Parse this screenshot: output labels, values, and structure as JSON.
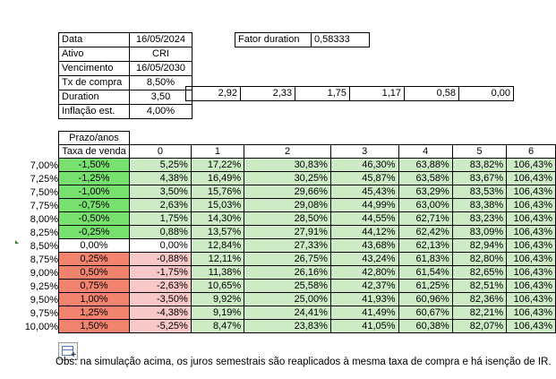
{
  "info": {
    "rows": [
      {
        "label": "Data",
        "value": "16/05/2024"
      },
      {
        "label": "Ativo",
        "value": "CRI"
      },
      {
        "label": "Vencimento",
        "value": "16/05/2030"
      },
      {
        "label": "Tx de compra",
        "value": "8,50%"
      },
      {
        "label": "Duration",
        "value": "3,50"
      },
      {
        "label": "Inflação est.",
        "value": "4,00%"
      }
    ]
  },
  "fator": {
    "label": "Fator duration",
    "value": "0,58333"
  },
  "duration_extra": [
    "2,92",
    "2,33",
    "1,75",
    "1,17",
    "0,58",
    "0,00"
  ],
  "grid": {
    "prazo_label": "Prazo/anos",
    "taxa_label": "Taxa de venda",
    "years": [
      "0",
      "1",
      "2",
      "3",
      "4",
      "5",
      "6"
    ],
    "row_labels": [
      "7,00%",
      "7,25%",
      "7,50%",
      "7,75%",
      "8,00%",
      "8,25%",
      "8,50%",
      "8,75%",
      "9,00%",
      "9,25%",
      "9,50%",
      "9,75%",
      "10,00%"
    ],
    "rows": [
      {
        "taxa": "-1,50%",
        "vals": [
          "5,25%",
          "17,22%",
          "30,83%",
          "46,30%",
          "63,88%",
          "83,82%",
          "106,43%"
        ]
      },
      {
        "taxa": "-1,25%",
        "vals": [
          "4,38%",
          "16,49%",
          "30,25%",
          "45,87%",
          "63,58%",
          "83,67%",
          "106,43%"
        ]
      },
      {
        "taxa": "-1,00%",
        "vals": [
          "3,50%",
          "15,76%",
          "29,66%",
          "45,43%",
          "63,29%",
          "83,53%",
          "106,43%"
        ]
      },
      {
        "taxa": "-0,75%",
        "vals": [
          "2,63%",
          "15,03%",
          "29,08%",
          "44,99%",
          "63,00%",
          "83,38%",
          "106,43%"
        ]
      },
      {
        "taxa": "-0,50%",
        "vals": [
          "1,75%",
          "14,30%",
          "28,50%",
          "44,55%",
          "62,71%",
          "83,23%",
          "106,43%"
        ]
      },
      {
        "taxa": "-0,25%",
        "vals": [
          "0,88%",
          "13,57%",
          "27,91%",
          "44,12%",
          "62,42%",
          "83,09%",
          "106,43%"
        ]
      },
      {
        "taxa": "0,00%",
        "vals": [
          "0,00%",
          "12,84%",
          "27,33%",
          "43,68%",
          "62,13%",
          "82,94%",
          "106,43%"
        ]
      },
      {
        "taxa": "0,25%",
        "vals": [
          "-0,88%",
          "12,11%",
          "26,75%",
          "43,24%",
          "61,83%",
          "82,80%",
          "106,43%"
        ]
      },
      {
        "taxa": "0,50%",
        "vals": [
          "-1,75%",
          "11,38%",
          "26,16%",
          "42,80%",
          "61,54%",
          "82,65%",
          "106,43%"
        ]
      },
      {
        "taxa": "0,75%",
        "vals": [
          "-2,63%",
          "10,65%",
          "25,58%",
          "42,37%",
          "61,25%",
          "82,51%",
          "106,43%"
        ]
      },
      {
        "taxa": "1,00%",
        "vals": [
          "-3,50%",
          "9,92%",
          "25,00%",
          "41,93%",
          "60,96%",
          "82,36%",
          "106,43%"
        ]
      },
      {
        "taxa": "1,25%",
        "vals": [
          "-4,38%",
          "9,19%",
          "24,41%",
          "41,49%",
          "60,67%",
          "82,21%",
          "106,43%"
        ]
      },
      {
        "taxa": "1,50%",
        "vals": [
          "-5,25%",
          "8,47%",
          "23,83%",
          "41,05%",
          "60,38%",
          "82,07%",
          "106,43%"
        ]
      }
    ]
  },
  "obs": "Obs: na simulação acima, os juros semestrais são reaplicados à mesma taxa de compra e há isenção de IR.",
  "icons": {
    "paste_options": "paste-options-icon"
  },
  "colors": {
    "green": "#77e06f",
    "light_green": "#cdecc6",
    "red": "#f2836e",
    "pink": "#f8c8c9"
  }
}
